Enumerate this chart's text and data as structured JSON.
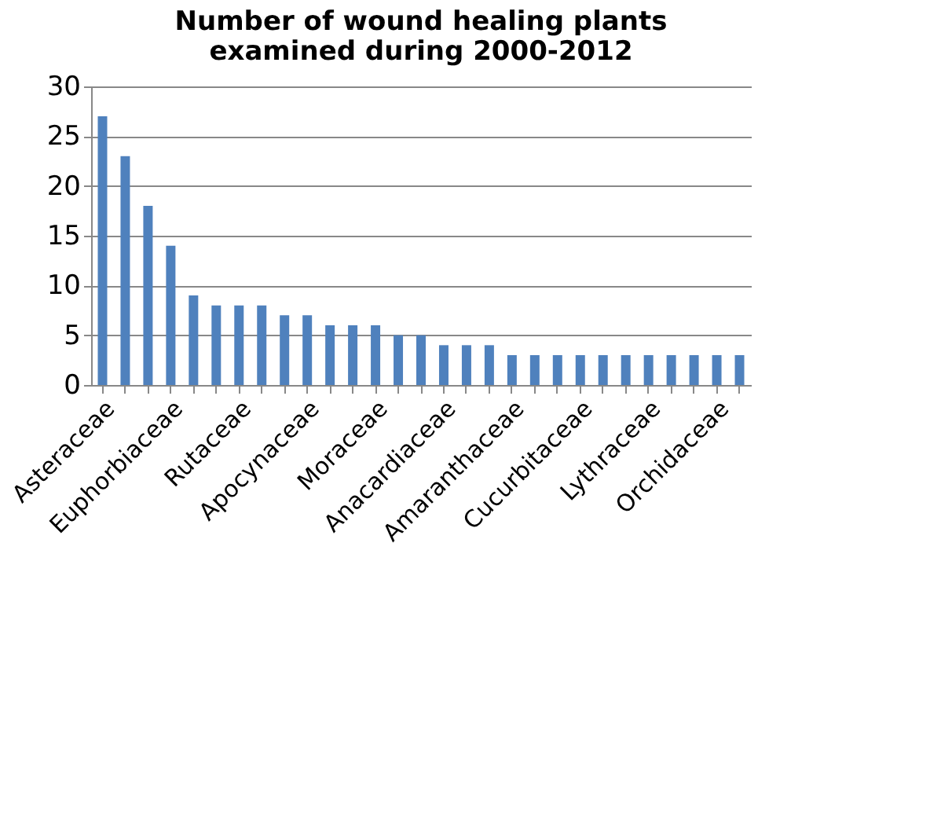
{
  "chart_data": {
    "type": "bar",
    "title": [
      "Number of wound healing plants",
      "examined during 2000-2012"
    ],
    "categories": [
      "Asteraceae",
      null,
      null,
      "Euphorbiaceae",
      null,
      null,
      "Rutaceae",
      null,
      null,
      "Apocynaceae",
      null,
      null,
      "Moraceae",
      null,
      null,
      "Anacardiaceae",
      null,
      null,
      "Amaranthaceae",
      null,
      null,
      "Cucurbitaceae",
      null,
      null,
      "Lythraceae",
      null,
      null,
      "Orchidaceae",
      null
    ],
    "values": [
      27,
      23,
      18,
      14,
      9,
      8,
      8,
      8,
      7,
      7,
      6,
      6,
      6,
      5,
      5,
      4,
      4,
      4,
      3,
      3,
      3,
      3,
      3,
      3,
      3,
      3,
      3,
      3,
      3
    ],
    "color": "#4f81bd",
    "ylim": [
      0,
      30
    ],
    "yticks": [
      0,
      5,
      10,
      15,
      20,
      25,
      30
    ],
    "grid": "y"
  }
}
